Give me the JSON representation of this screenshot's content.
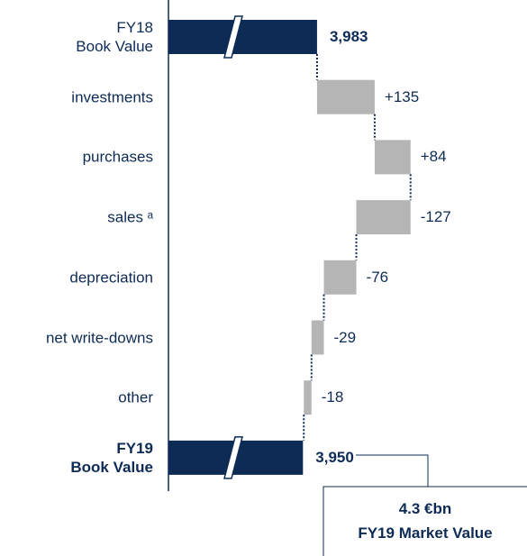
{
  "chart_data": {
    "type": "waterfall",
    "orientation": "horizontal",
    "categories": [
      "FY18\nBook Value",
      "investments",
      "purchases",
      "sales ᵃ",
      "depreciation",
      "net write-downs",
      "other",
      "FY19\nBook Value"
    ],
    "measure": [
      "absolute",
      "relative",
      "relative",
      "relative",
      "relative",
      "relative",
      "relative",
      "total"
    ],
    "values": [
      3983,
      135,
      84,
      -127,
      -76,
      -29,
      -18,
      3950
    ],
    "value_labels": [
      "3,983",
      "+135",
      "+84",
      "-127",
      "-76",
      "-29",
      "-18",
      "3,950"
    ],
    "total_color": "#0d2b55",
    "delta_color": "#b5b5b5",
    "xlim": [
      3635,
      4211
    ],
    "axis_break": true,
    "annotation": {
      "lines": [
        "4.3 €bn",
        "FY19 Market Value"
      ]
    }
  }
}
